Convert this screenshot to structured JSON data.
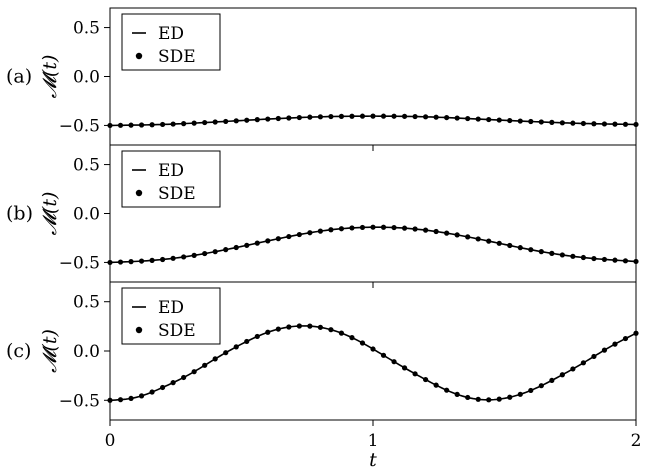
{
  "chart_data": [
    {
      "type": "line",
      "panel_label": "(a)",
      "ylabel": "𝓜(t)",
      "xlabel": "",
      "xlim": [
        0,
        2
      ],
      "ylim": [
        -0.7,
        0.7
      ],
      "yticks": [
        -0.5,
        0.0,
        0.5
      ],
      "ytick_labels": [
        "−0.5",
        "0.0",
        "0.5"
      ],
      "legend": {
        "position": "top-left",
        "entries": [
          "ED",
          "SDE"
        ]
      },
      "series": [
        {
          "name": "ED",
          "style": "line",
          "x": [
            0,
            0.2,
            0.4,
            0.6,
            0.8,
            1.0,
            1.2,
            1.4,
            1.6,
            1.8,
            2.0
          ],
          "values": [
            -0.5,
            -0.49,
            -0.465,
            -0.435,
            -0.412,
            -0.405,
            -0.412,
            -0.435,
            -0.46,
            -0.48,
            -0.49
          ]
        },
        {
          "name": "SDE",
          "style": "markers",
          "x": [
            0,
            0.2,
            0.4,
            0.6,
            0.8,
            1.0,
            1.2,
            1.4,
            1.6,
            1.8,
            2.0
          ],
          "values": [
            -0.5,
            -0.49,
            -0.465,
            -0.435,
            -0.412,
            -0.405,
            -0.412,
            -0.435,
            -0.46,
            -0.48,
            -0.49
          ]
        }
      ]
    },
    {
      "type": "line",
      "panel_label": "(b)",
      "ylabel": "𝓜(t)",
      "xlabel": "",
      "xlim": [
        0,
        2
      ],
      "ylim": [
        -0.7,
        0.7
      ],
      "yticks": [
        -0.5,
        0.0,
        0.5
      ],
      "ytick_labels": [
        "−0.5",
        "0.0",
        "0.5"
      ],
      "legend": {
        "position": "top-left",
        "entries": [
          "ED",
          "SDE"
        ]
      },
      "series": [
        {
          "name": "ED",
          "style": "line",
          "x": [
            0,
            0.2,
            0.4,
            0.6,
            0.8,
            1.0,
            1.2,
            1.4,
            1.6,
            1.8,
            2.0
          ],
          "values": [
            -0.5,
            -0.47,
            -0.39,
            -0.28,
            -0.18,
            -0.14,
            -0.17,
            -0.26,
            -0.37,
            -0.45,
            -0.49
          ]
        },
        {
          "name": "SDE",
          "style": "markers",
          "x": [
            0,
            0.2,
            0.4,
            0.6,
            0.8,
            1.0,
            1.2,
            1.4,
            1.6,
            1.8,
            2.0
          ],
          "values": [
            -0.5,
            -0.47,
            -0.39,
            -0.28,
            -0.18,
            -0.14,
            -0.17,
            -0.26,
            -0.37,
            -0.45,
            -0.49
          ]
        }
      ]
    },
    {
      "type": "line",
      "panel_label": "(c)",
      "ylabel": "𝓜(t)",
      "xlabel": "t",
      "xlim": [
        0,
        2
      ],
      "ylim": [
        -0.7,
        0.7
      ],
      "yticks": [
        -0.5,
        0.0,
        0.5
      ],
      "ytick_labels": [
        "−0.5",
        "0.0",
        "0.5"
      ],
      "xticks": [
        0,
        1,
        2
      ],
      "xtick_labels": [
        "0",
        "1",
        "2"
      ],
      "legend": {
        "position": "top-left",
        "entries": [
          "ED",
          "SDE"
        ]
      },
      "series": [
        {
          "name": "ED",
          "style": "line",
          "x": [
            0,
            0.1,
            0.2,
            0.3,
            0.4,
            0.5,
            0.6,
            0.7,
            0.8,
            0.9,
            1.0,
            1.1,
            1.2,
            1.3,
            1.4,
            1.5,
            1.6,
            1.7,
            1.8,
            1.9,
            2.0
          ],
          "values": [
            -0.5,
            -0.47,
            -0.37,
            -0.24,
            -0.08,
            0.07,
            0.19,
            0.25,
            0.24,
            0.16,
            0.02,
            -0.14,
            -0.29,
            -0.42,
            -0.49,
            -0.48,
            -0.4,
            -0.27,
            -0.12,
            0.04,
            0.18
          ]
        },
        {
          "name": "SDE",
          "style": "markers",
          "x": [
            0,
            0.1,
            0.2,
            0.3,
            0.4,
            0.5,
            0.6,
            0.7,
            0.8,
            0.9,
            1.0,
            1.1,
            1.2,
            1.3,
            1.4,
            1.5,
            1.6,
            1.7,
            1.8,
            1.9,
            2.0
          ],
          "values": [
            -0.5,
            -0.47,
            -0.37,
            -0.24,
            -0.08,
            0.07,
            0.19,
            0.25,
            0.24,
            0.16,
            0.02,
            -0.14,
            -0.29,
            -0.42,
            -0.49,
            -0.48,
            -0.4,
            -0.27,
            -0.12,
            0.04,
            0.18
          ]
        }
      ]
    }
  ]
}
